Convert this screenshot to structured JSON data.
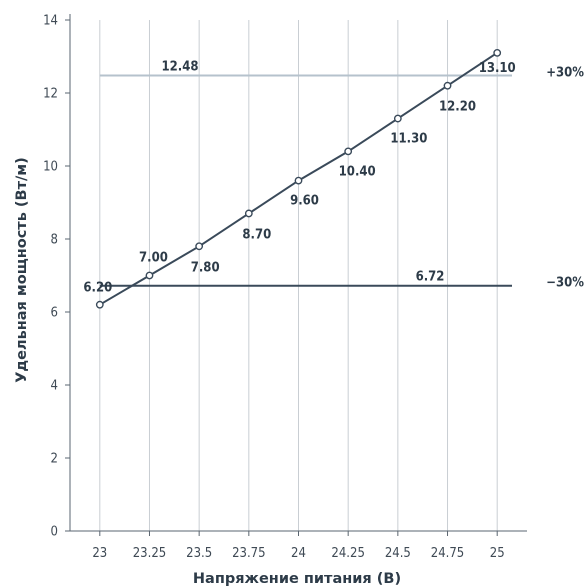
{
  "chart_data": {
    "type": "line",
    "title": "",
    "xlabel": "Напряжение питания (В)",
    "ylabel": "Удельная мощность (Вт/м)",
    "x": [
      23,
      23.25,
      23.5,
      23.75,
      24,
      24.25,
      24.5,
      24.75,
      25
    ],
    "x_tick_labels": [
      "23",
      "23.25",
      "23.5",
      "23.75",
      "24",
      "24.25",
      "24.5",
      "24.75",
      "25"
    ],
    "xlim": [
      22.85,
      25.15
    ],
    "ylim": [
      0,
      14
    ],
    "y_ticks": [
      0,
      2,
      4,
      6,
      8,
      10,
      12,
      14
    ],
    "y_tick_labels": [
      "0",
      "2",
      "4",
      "6",
      "8",
      "10",
      "12",
      "14"
    ],
    "grid": "vertical",
    "series": [
      {
        "values": [
          6.2,
          7.0,
          7.8,
          8.7,
          9.6,
          10.4,
          11.3,
          12.2,
          13.1
        ],
        "data_labels": [
          "6.20",
          "7.00",
          "7.80",
          "8.70",
          "9.60",
          "10.40",
          "11.30",
          "12.20",
          "13.10"
        ],
        "color": "#3a4a5a",
        "marker": "open-circle"
      }
    ],
    "reference_lines": [
      {
        "value": 12.48,
        "label": "12.48",
        "side_label": "+30%",
        "color": "#b5c2cc"
      },
      {
        "value": 6.72,
        "label": "6.72",
        "side_label": "−30%",
        "color": "#3a4a5a"
      }
    ]
  }
}
